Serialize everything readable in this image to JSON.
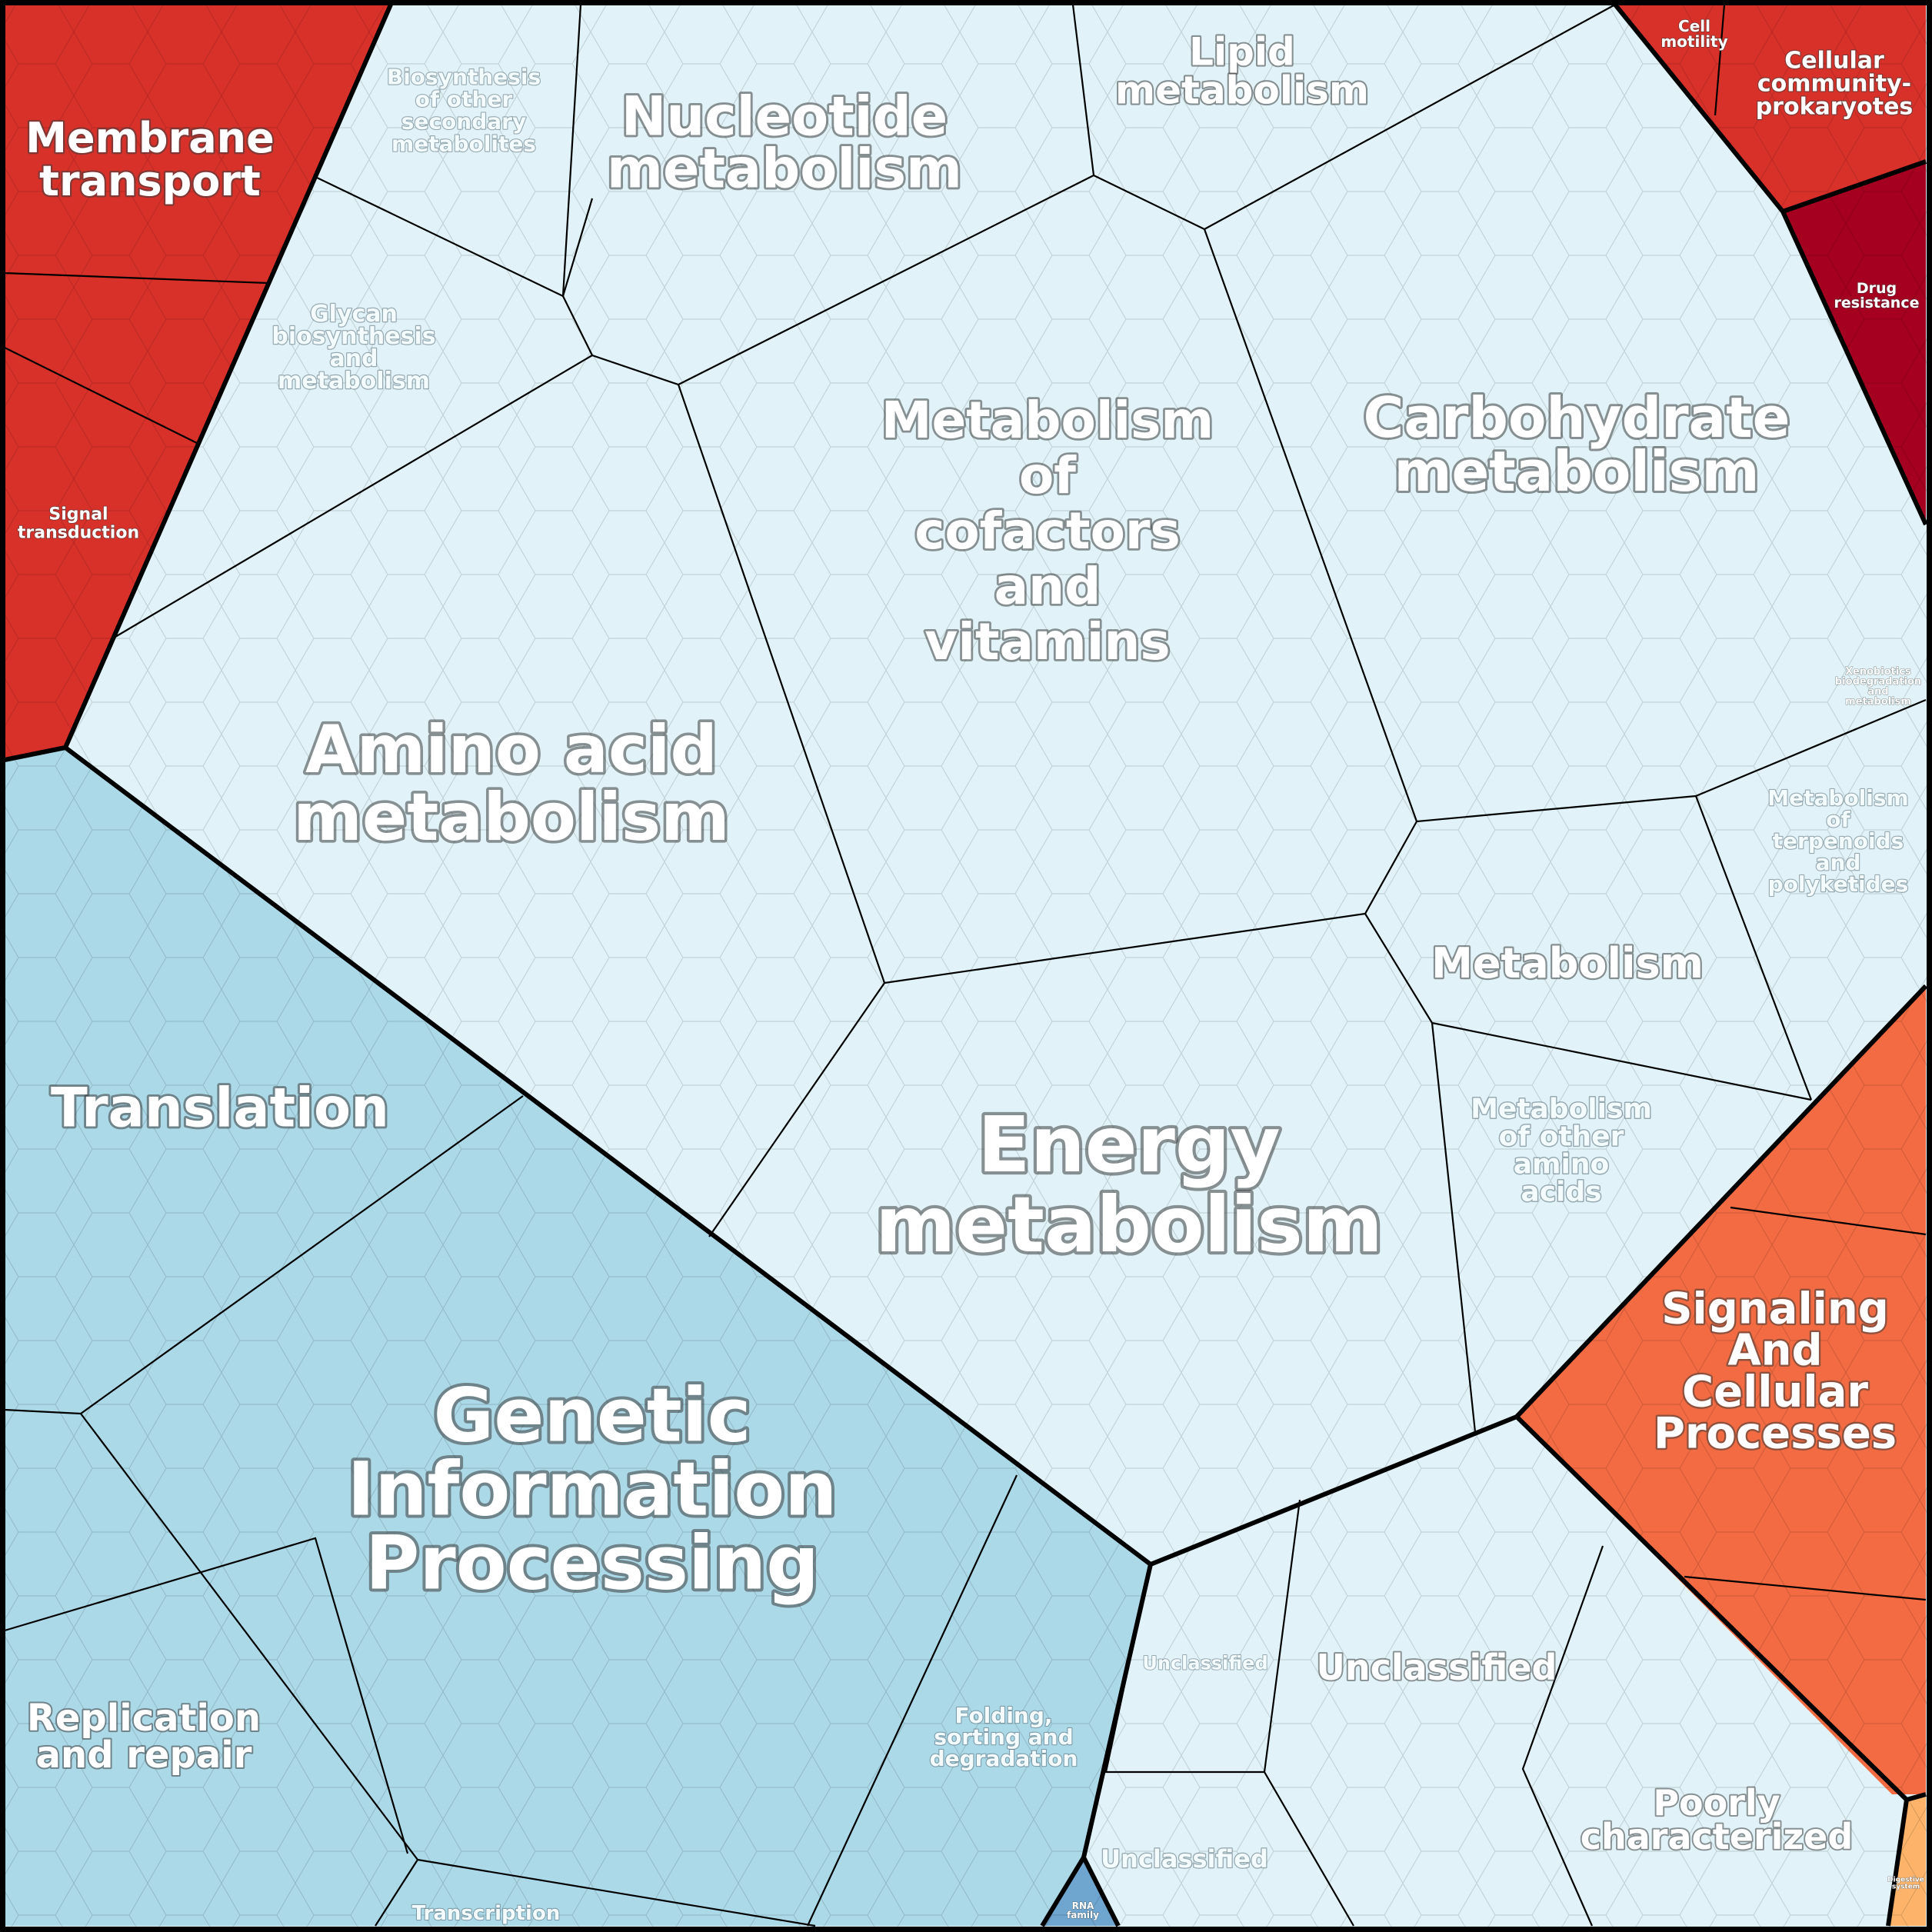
{
  "colors": {
    "metabolism": "#e1f3f8",
    "genetic": "#acd9e8",
    "genetic_alt": "#b2dbe9",
    "rna_family": "#6fa6cf",
    "environmental": "#d8312a",
    "drug_resistance": "#a5001f",
    "signaling": "#f26b42",
    "digestive": "#fdb46a",
    "border": "#000000"
  },
  "labels": {
    "membrane_transport": [
      "Membrane",
      "transport"
    ],
    "signal_transduction": [
      "Signal",
      "transduction"
    ],
    "biosynthesis_secondary": [
      "Biosynthesis",
      "of other",
      "secondary",
      "metabolites"
    ],
    "nucleotide_metabolism": [
      "Nucleotide",
      "metabolism"
    ],
    "lipid_metabolism": [
      "Lipid",
      "metabolism"
    ],
    "cell_motility": [
      "Cell",
      "motility"
    ],
    "cellular_community": [
      "Cellular",
      "community-",
      "prokaryotes"
    ],
    "drug_resistance": [
      "Drug",
      "resistance"
    ],
    "glycan": [
      "Glycan",
      "biosynthesis",
      "and",
      "metabolism"
    ],
    "carbohydrate": [
      "Carbohydrate",
      "metabolism"
    ],
    "cofactors": [
      "Metabolism",
      "of",
      "cofactors",
      "and",
      "vitamins"
    ],
    "xenobiotics": [
      "Xenobiotics",
      "biodegradation",
      "and",
      "metabolism"
    ],
    "amino_acid": [
      "Amino acid",
      "metabolism"
    ],
    "terpenoids": [
      "Metabolism",
      "of",
      "terpenoids",
      "and",
      "polyketides"
    ],
    "metabolism": [
      "Metabolism"
    ],
    "translation": [
      "Translation"
    ],
    "other_amino": [
      "Metabolism",
      "of other",
      "amino",
      "acids"
    ],
    "energy": [
      "Energy",
      "metabolism"
    ],
    "signaling_cellular": [
      "Signaling",
      "And",
      "Cellular",
      "Processes"
    ],
    "genetic_info": [
      "Genetic",
      "Information",
      "Processing"
    ],
    "unclassified_small": [
      "Unclassified"
    ],
    "unclassified_large": [
      "Unclassified"
    ],
    "replication": [
      "Replication",
      "and repair"
    ],
    "folding": [
      "Folding,",
      "sorting and",
      "degradation"
    ],
    "poorly": [
      "Poorly",
      "characterized"
    ],
    "unclassified_bottom": [
      "Unclassified"
    ],
    "transcription": [
      "Transcription"
    ],
    "rna_family": [
      "RNA",
      "family"
    ],
    "digestive": [
      "Digestive",
      "system"
    ]
  }
}
